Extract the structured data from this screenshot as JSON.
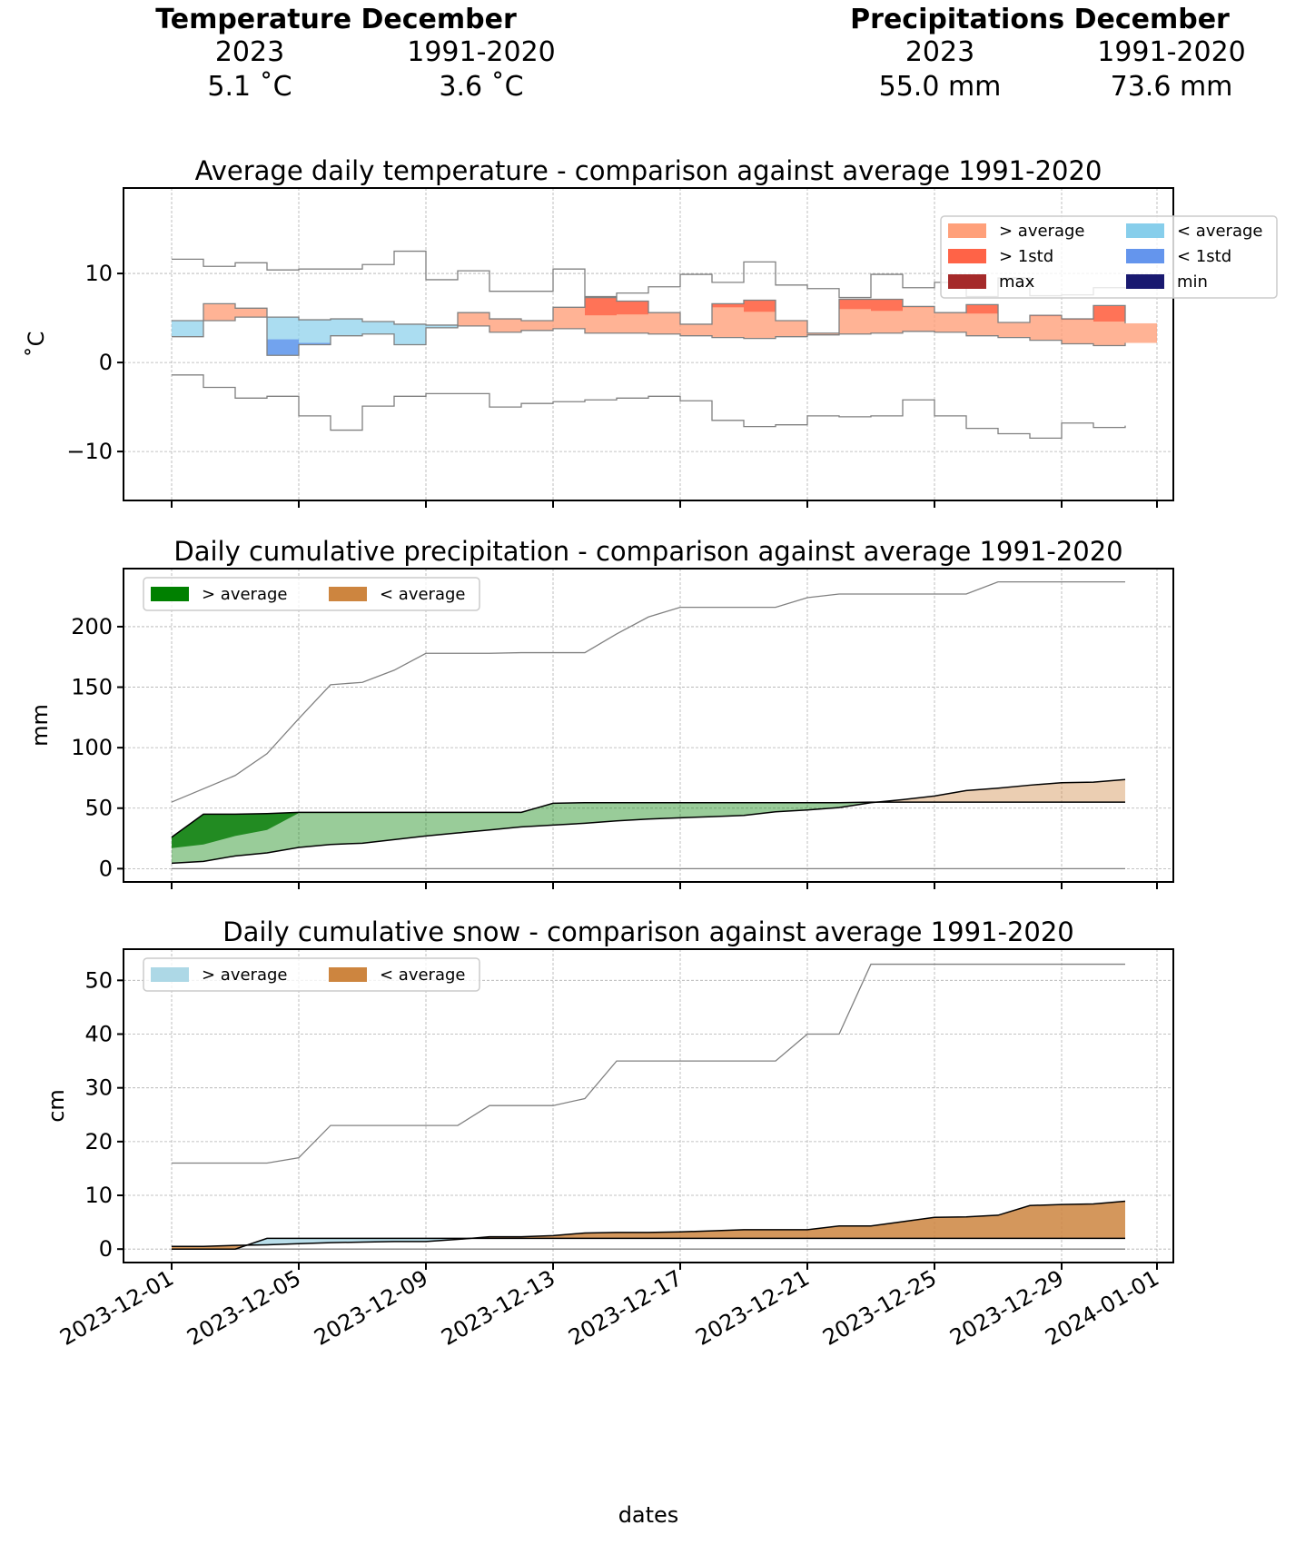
{
  "header": {
    "temperature": {
      "title": "Temperature December",
      "col_current": "2023",
      "col_normal": "1991-2020",
      "value_current": "5.1 ˚C",
      "value_normal": "3.6 ˚C"
    },
    "precipitation": {
      "title": "Precipitations December",
      "col_current": "2023",
      "col_normal": "1991-2020",
      "value_current": "55.0 mm",
      "value_normal": "73.6 mm"
    }
  },
  "colors": {
    "above_avg_temp": "#ffa07a",
    "above_1std_temp": "#ff6347",
    "max_temp": "#a52a2a",
    "below_avg_temp": "#87ceeb",
    "below_1std_temp": "#6495ed",
    "min_temp": "#191970",
    "precip_above": "#008000",
    "precip_below": "#cd853f",
    "snow_above": "#add8e6",
    "snow_below": "#cd853f",
    "envelope_line": "#808080"
  },
  "chart_data": [
    {
      "type": "area",
      "id": "temperature",
      "title": "Average daily temperature - comparison against average 1991-2020",
      "xlabel": "",
      "ylabel": "˚C",
      "ylim": [
        -15.5,
        19.6
      ],
      "yticks": [
        10,
        0,
        -10
      ],
      "ytick_labels": [
        "10",
        "0",
        "−10"
      ],
      "grid": true,
      "step": true,
      "legend_position": "top-right",
      "legend": [
        "> average",
        "> 1std",
        "max",
        "< average",
        "< 1std",
        "min"
      ],
      "x": [
        "2023-12-01",
        "2023-12-02",
        "2023-12-03",
        "2023-12-04",
        "2023-12-05",
        "2023-12-06",
        "2023-12-07",
        "2023-12-08",
        "2023-12-09",
        "2023-12-10",
        "2023-12-11",
        "2023-12-12",
        "2023-12-13",
        "2023-12-14",
        "2023-12-15",
        "2023-12-16",
        "2023-12-17",
        "2023-12-18",
        "2023-12-19",
        "2023-12-20",
        "2023-12-21",
        "2023-12-22",
        "2023-12-23",
        "2023-12-24",
        "2023-12-25",
        "2023-12-26",
        "2023-12-27",
        "2023-12-28",
        "2023-12-29",
        "2023-12-30",
        "2023-12-31"
      ],
      "series": [
        {
          "name": "observed 2023",
          "values": [
            2.9,
            6.6,
            6.1,
            0.8,
            2.0,
            3.0,
            3.2,
            2.0,
            3.9,
            5.6,
            4.9,
            4.7,
            6.2,
            7.3,
            6.9,
            5.6,
            4.3,
            6.6,
            7.0,
            4.7,
            3.3,
            7.1,
            7.1,
            6.3,
            5.6,
            6.5,
            4.5,
            5.3,
            4.9,
            6.4,
            4.4
          ]
        },
        {
          "name": "average 1991-2020",
          "values": [
            4.7,
            4.7,
            5.1,
            5.1,
            4.8,
            4.9,
            4.6,
            4.3,
            4.2,
            4.1,
            3.4,
            3.6,
            3.8,
            3.3,
            3.3,
            3.2,
            3.0,
            2.8,
            2.7,
            2.9,
            3.1,
            3.2,
            3.3,
            3.5,
            3.4,
            3.0,
            2.8,
            2.5,
            2.1,
            1.9,
            2.2
          ]
        },
        {
          "name": "+1std",
          "values": [
            7.5,
            7.5,
            7.8,
            7.8,
            7.5,
            7.6,
            7.3,
            7.0,
            6.9,
            6.8,
            6.1,
            6.3,
            6.5,
            5.3,
            5.4,
            6.0,
            5.7,
            6.2,
            5.7,
            5.6,
            5.8,
            6.0,
            5.8,
            6.2,
            6.1,
            5.5,
            5.5,
            5.2,
            4.8,
            4.6,
            4.9
          ]
        },
        {
          "name": "-1std",
          "values": [
            1.9,
            1.9,
            2.3,
            2.6,
            2.2,
            2.2,
            1.9,
            1.6,
            1.5,
            1.4,
            0.7,
            0.9,
            1.1,
            0.6,
            0.6,
            0.5,
            0.3,
            0.1,
            0.0,
            0.2,
            0.4,
            0.5,
            0.6,
            0.8,
            0.7,
            0.3,
            0.1,
            -0.2,
            -0.6,
            -0.8,
            -0.5
          ]
        },
        {
          "name": "max",
          "values": [
            11.6,
            10.8,
            11.2,
            10.4,
            10.5,
            10.5,
            11.0,
            12.5,
            9.3,
            10.3,
            8.0,
            8.0,
            10.5,
            7.4,
            7.8,
            8.5,
            9.9,
            9.0,
            11.3,
            8.7,
            8.3,
            7.3,
            9.9,
            8.4,
            9.0,
            7.4,
            9.5,
            7.5,
            7.6,
            8.4,
            8.3
          ]
        },
        {
          "name": "min",
          "values": [
            -1.4,
            -2.8,
            -4.0,
            -3.8,
            -6.0,
            -7.6,
            -4.9,
            -3.8,
            -3.5,
            -3.5,
            -5.0,
            -4.6,
            -4.4,
            -4.2,
            -4.0,
            -3.8,
            -4.3,
            -6.5,
            -7.2,
            -7.0,
            -6.0,
            -6.1,
            -6.0,
            -4.2,
            -6.0,
            -7.4,
            -8.0,
            -8.5,
            -6.8,
            -7.3,
            -7.1
          ]
        }
      ]
    },
    {
      "type": "area",
      "id": "precipitation",
      "title": "Daily cumulative precipitation - comparison against average 1991-2020",
      "xlabel": "",
      "ylabel": "mm",
      "ylim": [
        -11,
        248
      ],
      "yticks": [
        0,
        50,
        100,
        150,
        200
      ],
      "ytick_labels": [
        "0",
        "50",
        "100",
        "150",
        "200"
      ],
      "grid": true,
      "legend_position": "top-left",
      "legend": [
        "> average",
        "< average"
      ],
      "x": [
        "2023-12-01",
        "2023-12-02",
        "2023-12-03",
        "2023-12-04",
        "2023-12-05",
        "2023-12-06",
        "2023-12-07",
        "2023-12-08",
        "2023-12-09",
        "2023-12-10",
        "2023-12-11",
        "2023-12-12",
        "2023-12-13",
        "2023-12-14",
        "2023-12-15",
        "2023-12-16",
        "2023-12-17",
        "2023-12-18",
        "2023-12-19",
        "2023-12-20",
        "2023-12-21",
        "2023-12-22",
        "2023-12-23",
        "2023-12-24",
        "2023-12-25",
        "2023-12-26",
        "2023-12-27",
        "2023-12-28",
        "2023-12-29",
        "2023-12-30",
        "2023-12-31"
      ],
      "series": [
        {
          "name": "observed 2023",
          "values": [
            26,
            45,
            45,
            45.5,
            46.5,
            46.5,
            46.5,
            46.5,
            46.5,
            46.5,
            46.5,
            46.5,
            54,
            54.5,
            54.5,
            54.5,
            54.5,
            54.5,
            54.5,
            54.5,
            54.5,
            54.5,
            55,
            55,
            55,
            55,
            55,
            55,
            55,
            55,
            55
          ]
        },
        {
          "name": "average 1991-2020",
          "values": [
            4.5,
            6,
            10.5,
            13,
            17.5,
            20,
            21,
            24,
            27,
            29.5,
            32,
            34.5,
            36,
            37.5,
            39.5,
            41,
            42,
            43,
            44,
            47,
            48.5,
            50.5,
            54.5,
            57,
            60,
            64.5,
            66.5,
            69,
            71,
            71.5,
            73.6
          ]
        },
        {
          "name": "+1std",
          "values": [
            17,
            20,
            27,
            32,
            46,
            46,
            46,
            46,
            46,
            46,
            46,
            46,
            54,
            54.5,
            54.5,
            54.5,
            54.5,
            54.5,
            54.5,
            54.5,
            54.5,
            54.5,
            55,
            55,
            55,
            55,
            55,
            55,
            55,
            55,
            55
          ]
        },
        {
          "name": "max",
          "values": [
            55,
            66,
            77,
            95,
            124,
            152,
            154,
            164,
            178,
            178,
            178,
            178.5,
            178.5,
            178.5,
            194,
            208,
            216,
            216,
            216,
            216,
            224,
            227,
            227,
            227,
            227,
            227,
            237,
            237,
            237,
            237,
            237
          ]
        },
        {
          "name": "min",
          "values": [
            0,
            0,
            0,
            0,
            0,
            0,
            0,
            0,
            0,
            0,
            0,
            0,
            0,
            0,
            0,
            0,
            0,
            0,
            0,
            0,
            0,
            0,
            0,
            0,
            0,
            0,
            0,
            0,
            0,
            0,
            0
          ]
        }
      ]
    },
    {
      "type": "area",
      "id": "snow",
      "title": "Daily cumulative snow - comparison against average 1991-2020",
      "xlabel": "dates",
      "ylabel": "cm",
      "ylim": [
        -2.5,
        55.8
      ],
      "yticks": [
        0,
        10,
        20,
        30,
        40,
        50
      ],
      "ytick_labels": [
        "0",
        "10",
        "20",
        "30",
        "40",
        "50"
      ],
      "grid": true,
      "legend_position": "top-left",
      "legend": [
        "> average",
        "< average"
      ],
      "xticks": [
        "2023-12-01",
        "2023-12-05",
        "2023-12-09",
        "2023-12-13",
        "2023-12-17",
        "2023-12-21",
        "2023-12-25",
        "2023-12-29",
        "2024-01-01"
      ],
      "x": [
        "2023-12-01",
        "2023-12-02",
        "2023-12-03",
        "2023-12-04",
        "2023-12-05",
        "2023-12-06",
        "2023-12-07",
        "2023-12-08",
        "2023-12-09",
        "2023-12-10",
        "2023-12-11",
        "2023-12-12",
        "2023-12-13",
        "2023-12-14",
        "2023-12-15",
        "2023-12-16",
        "2023-12-17",
        "2023-12-18",
        "2023-12-19",
        "2023-12-20",
        "2023-12-21",
        "2023-12-22",
        "2023-12-23",
        "2023-12-24",
        "2023-12-25",
        "2023-12-26",
        "2023-12-27",
        "2023-12-28",
        "2023-12-29",
        "2023-12-30",
        "2023-12-31"
      ],
      "series": [
        {
          "name": "observed 2023",
          "values": [
            0,
            0,
            0,
            2,
            2,
            2,
            2,
            2,
            2,
            2,
            2,
            2,
            2,
            2,
            2,
            2,
            2,
            2,
            2,
            2,
            2,
            2,
            2,
            2,
            2,
            2,
            2,
            2,
            2,
            2,
            2
          ]
        },
        {
          "name": "average 1991-2020",
          "values": [
            0.5,
            0.5,
            0.7,
            0.8,
            1.0,
            1.2,
            1.3,
            1.4,
            1.4,
            1.8,
            2.3,
            2.3,
            2.5,
            3.0,
            3.1,
            3.1,
            3.2,
            3.4,
            3.6,
            3.6,
            3.6,
            4.3,
            4.3,
            5.1,
            5.9,
            6.0,
            6.3,
            8.1,
            8.3,
            8.4,
            8.9
          ]
        },
        {
          "name": "max",
          "values": [
            16,
            16,
            16,
            16,
            17,
            23,
            23,
            23,
            23,
            23,
            26.7,
            26.7,
            26.7,
            28,
            35,
            35,
            35,
            35,
            35,
            35,
            40,
            40,
            53,
            53,
            53,
            53,
            53,
            53,
            53,
            53,
            53
          ]
        },
        {
          "name": "min",
          "values": [
            0,
            0,
            0,
            0,
            0,
            0,
            0,
            0,
            0,
            0,
            0,
            0,
            0,
            0,
            0,
            0,
            0,
            0,
            0,
            0,
            0,
            0,
            0,
            0,
            0,
            0,
            0,
            0,
            0,
            0,
            0
          ]
        }
      ]
    }
  ]
}
